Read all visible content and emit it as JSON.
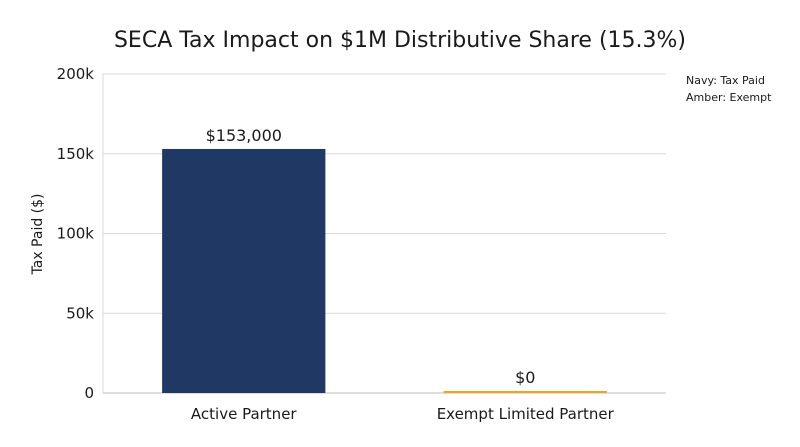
{
  "chart_data": {
    "type": "bar",
    "title": "SECA Tax Impact on $1M Distributive Share (15.3%)",
    "xlabel": "",
    "ylabel": "Tax Paid ($)",
    "categories": [
      "Active Partner",
      "Exempt Limited Partner"
    ],
    "values": [
      153000,
      0
    ],
    "data_labels": [
      "$153,000",
      "$0"
    ],
    "colors": [
      "#1f3864",
      "#f4a21c"
    ],
    "ylim": [
      0,
      200000
    ],
    "yticks": [
      0,
      50000,
      100000,
      150000,
      200000
    ],
    "ytick_labels": [
      "0",
      "50k",
      "100k",
      "150k",
      "200k"
    ],
    "grid": true,
    "legend_notes": [
      "Navy: Tax Paid",
      "Amber: Exempt"
    ],
    "legend_position": "top-right"
  }
}
